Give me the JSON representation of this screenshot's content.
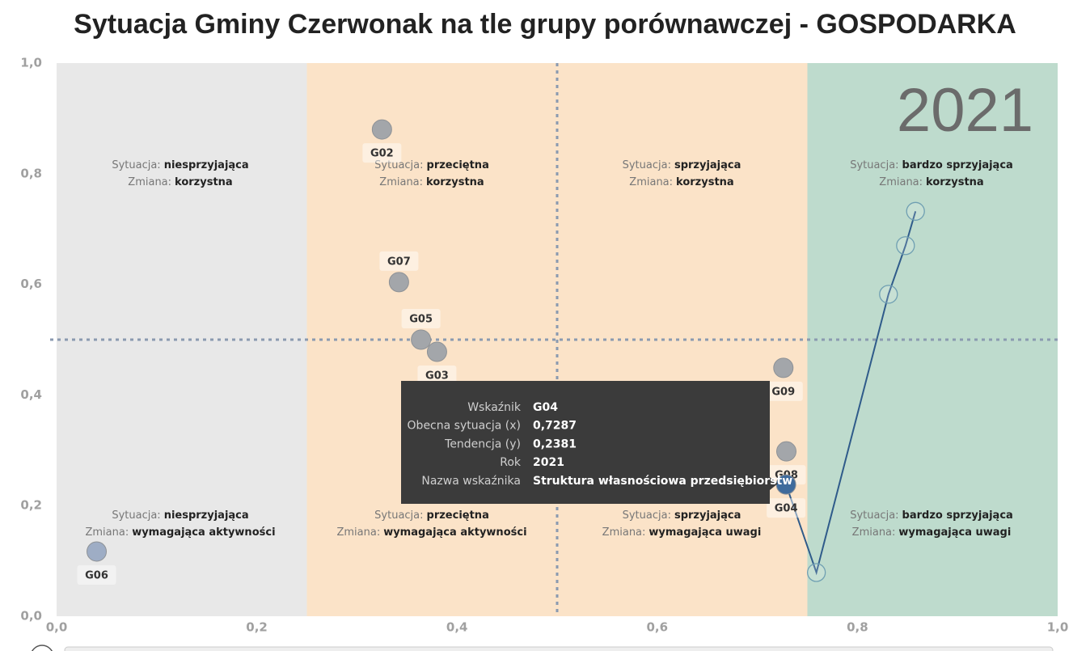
{
  "chart_data": {
    "type": "scatter",
    "title": "Sytuacja Gminy Czerwonak na tle grupy porównawczej - GOSPODARKA",
    "year": "2021",
    "xlim": [
      0,
      1
    ],
    "ylim": [
      0,
      1
    ],
    "xticks": [
      {
        "value": 0,
        "label": "0,0"
      },
      {
        "value": 0.2,
        "label": "0,2"
      },
      {
        "value": 0.4,
        "label": "0,4"
      },
      {
        "value": 0.6,
        "label": "0,6"
      },
      {
        "value": 0.8,
        "label": "0,8"
      },
      {
        "value": 1,
        "label": "1,0"
      }
    ],
    "yticks": [
      {
        "value": 0,
        "label": "0,0"
      },
      {
        "value": 0.2,
        "label": "0,2"
      },
      {
        "value": 0.4,
        "label": "0,4"
      },
      {
        "value": 0.6,
        "label": "0,6"
      },
      {
        "value": 0.8,
        "label": "0,8"
      },
      {
        "value": 1,
        "label": "1,0"
      }
    ],
    "zones": [
      {
        "from": 0,
        "to": 0.25,
        "color": "#e8e8e8"
      },
      {
        "from": 0.25,
        "to": 0.75,
        "color": "#fbe3c8"
      },
      {
        "from": 0.75,
        "to": 1,
        "color": "#bedbcd"
      }
    ],
    "ref_lines": {
      "x": 0.5,
      "y": 0.5,
      "color": "#8a9ab0"
    },
    "points": {
      "labels": [
        "G02",
        "G07",
        "G05",
        "G03",
        "G09",
        "G08",
        "G04",
        "G06"
      ],
      "x": [
        0.325,
        0.342,
        0.364,
        0.38,
        0.726,
        0.729,
        0.7287,
        0.04
      ],
      "y": [
        0.88,
        0.604,
        0.5,
        0.478,
        0.449,
        0.298,
        0.2381,
        0.117
      ],
      "colors": [
        "#a3a6aa",
        "#a3a6aa",
        "#a3a6aa",
        "#a3a6aa",
        "#a3a6aa",
        "#a3a6aa",
        "#3f6b9c",
        "#9eadc5"
      ]
    },
    "trajectory": {
      "x": [
        0.858,
        0.848,
        0.831,
        0.759
      ],
      "y": [
        0.732,
        0.67,
        0.582,
        0.079
      ],
      "color": "#2f5b8a"
    },
    "situation_label": "Sytuacja:",
    "change_label": "Zmiana:",
    "quadrants": [
      {
        "sytuacja": "niesprzyjająca",
        "zmiana": "korzystna"
      },
      {
        "sytuacja": "przeciętna",
        "zmiana": "korzystna"
      },
      {
        "sytuacja": "sprzyjająca",
        "zmiana": "korzystna"
      },
      {
        "sytuacja": "bardzo sprzyjająca",
        "zmiana": "korzystna"
      },
      {
        "sytuacja": "niesprzyjająca",
        "zmiana": "wymagająca aktywności"
      },
      {
        "sytuacja": "przeciętna",
        "zmiana": "wymagająca aktywności"
      },
      {
        "sytuacja": "sprzyjająca",
        "zmiana": "wymagająca uwagi"
      },
      {
        "sytuacja": "bardzo sprzyjająca",
        "zmiana": "wymagająca uwagi"
      }
    ],
    "tooltip": [
      {
        "key": "Wskaźnik",
        "value": "G04"
      },
      {
        "key": "Obecna sytuacja (x)",
        "value": "0,7287"
      },
      {
        "key": "Tendencja (y)",
        "value": "0,2381"
      },
      {
        "key": "Rok",
        "value": "2021"
      },
      {
        "key": "Nazwa wskaźnika",
        "value": "Struktura własnościowa przedsiębiorstw"
      }
    ]
  }
}
